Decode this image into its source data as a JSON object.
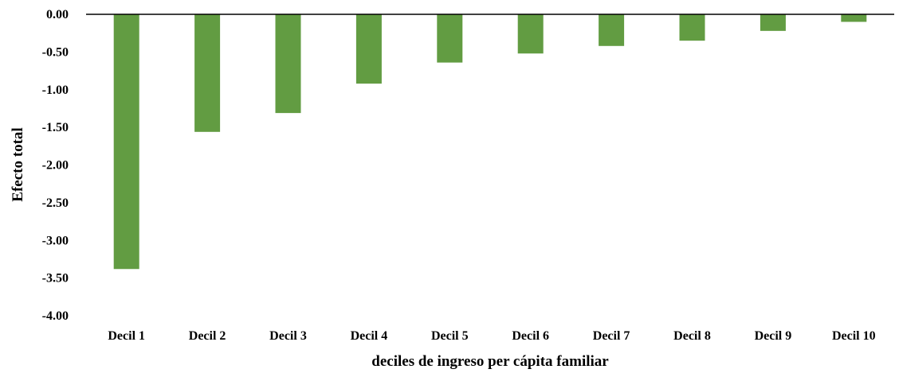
{
  "chart_data": {
    "type": "bar",
    "categories": [
      "Decil 1",
      "Decil 2",
      "Decil 3",
      "Decil 4",
      "Decil 5",
      "Decil 6",
      "Decil 7",
      "Decil 8",
      "Decil 9",
      "Decil 10"
    ],
    "values": [
      -3.38,
      -1.56,
      -1.31,
      -0.92,
      -0.64,
      -0.52,
      -0.42,
      -0.35,
      -0.22,
      -0.1
    ],
    "title": "",
    "xlabel": "deciles de ingreso per cápita familiar",
    "ylabel": "Efecto total",
    "ylim": [
      -4.0,
      0.0
    ],
    "yticks": [
      "0.00",
      "-0.50",
      "-1.00",
      "-1.50",
      "-2.00",
      "-2.50",
      "-3.00",
      "-3.50",
      "-4.00"
    ],
    "bar_color": "#629c42",
    "grid": false,
    "legend": "none"
  }
}
